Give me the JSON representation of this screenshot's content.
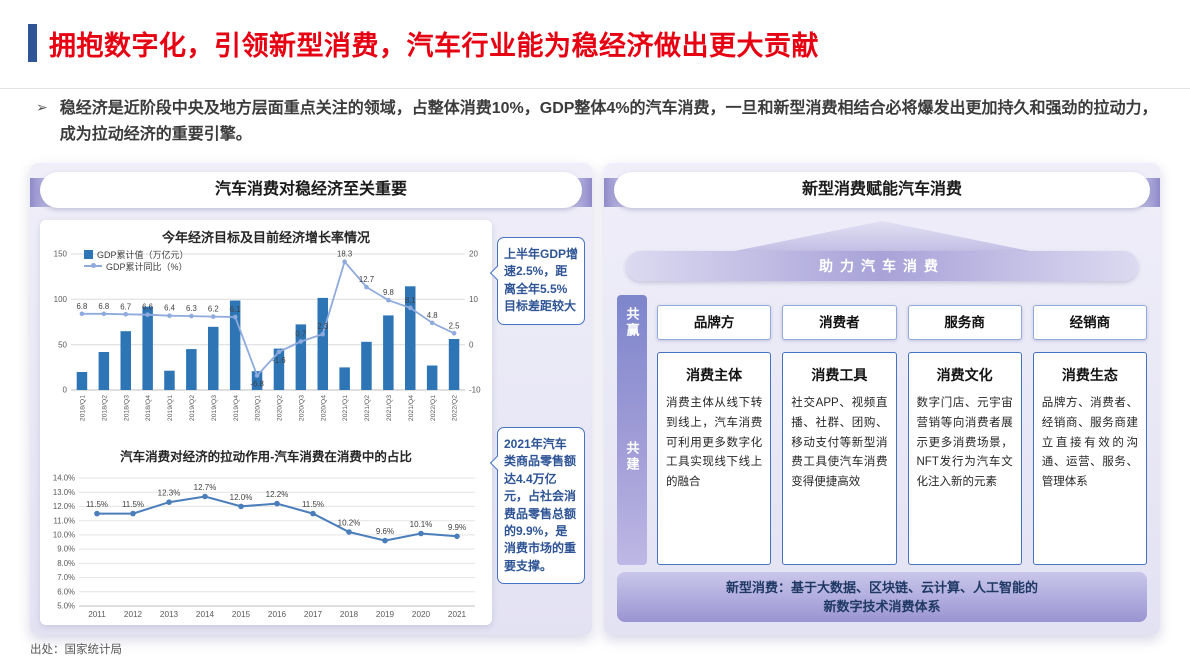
{
  "header": {
    "title": "拥抱数字化，引领新型消费，汽车行业能为稳经济做出更大贡献",
    "bullet_marker": "➢",
    "bullet": "稳经济是近阶段中央及地方层面重点关注的领域，占整体消费10%，GDP整体4%的汽车消费，一旦和新型消费相结合必将爆发出更加持久和强劲的拉动力，成为拉动经济的重要引擎。"
  },
  "left_panel": {
    "title": "汽车消费对稳经济至关重要",
    "callout_gdp": "上半年GDP增速2.5%，距离全年5.5%目标差距较大",
    "callout_auto": "2021年汽车类商品零售额达4.4万亿元，占社会消费品零售总额的9.9%，是消费市场的重要支撑。"
  },
  "right_panel": {
    "title": "新型消费赋能汽车消费",
    "banner": "助力汽车消费",
    "rail": {
      "win": "共赢",
      "build": "共建"
    },
    "roles": [
      {
        "label": "品牌方"
      },
      {
        "label": "消费者"
      },
      {
        "label": "服务商"
      },
      {
        "label": "经销商"
      }
    ],
    "cards": [
      {
        "title": "消费主体",
        "body": "消费主体从线下转到线上，汽车消费可利用更多数字化工具实现线下线上的融合"
      },
      {
        "title": "消费工具",
        "body": "社交APP、视频直播、社群、团购、移动支付等新型消费工具使汽车消费变得便捷高效"
      },
      {
        "title": "消费文化",
        "body": "数字门店、元宇宙营销等向消费者展示更多消费场景，NFT发行为汽车文化注入新的元素"
      },
      {
        "title": "消费生态",
        "body": "品牌方、消费者、经销商、服务商建立直接有效的沟通、运营、服务、管理体系"
      }
    ],
    "footer": "新型消费：基于大数据、区块链、云计算、人工智能的\n新数字技术消费体系"
  },
  "footer": {
    "source": "出处：国家统计局"
  },
  "colors": {
    "title_red": "#e60012",
    "accent_blue": "#2f5597",
    "bar_blue": "#2e75b6",
    "line_light": "#8faadc",
    "line_mid": "#4a7ebb",
    "callout_border": "#4472c4",
    "callout_text": "#2e5496",
    "panel_purple": "#b9b4e0"
  },
  "chart_data": [
    {
      "type": "bar",
      "subtype": "bar+line combo",
      "title": "今年经济目标及目前经济增长率情况",
      "categories": [
        "2018/Q1",
        "2018/Q2",
        "2018/Q3",
        "2018/Q4",
        "2019/Q1",
        "2019/Q2",
        "2019/Q3",
        "2019/Q4",
        "2020/Q1",
        "2020/Q2",
        "2020/Q3",
        "2020/Q4",
        "2021/Q1",
        "2021/Q2",
        "2021/Q3",
        "2021/Q4",
        "2022/Q1",
        "2022/Q2"
      ],
      "series": [
        {
          "name": "GDP累计值（万亿元）",
          "type": "bar",
          "axis": "left",
          "values": [
            19.9,
            41.9,
            64.9,
            91.9,
            21.3,
            45.1,
            69.7,
            98.7,
            20.7,
            45.7,
            72.3,
            101.6,
            24.9,
            53.2,
            82.3,
            114.4,
            27.0,
            56.3
          ]
        },
        {
          "name": "GDP累计同比（%）",
          "type": "line",
          "axis": "right",
          "values": [
            6.8,
            6.8,
            6.7,
            6.6,
            6.4,
            6.3,
            6.2,
            6.1,
            -6.8,
            -1.6,
            0.7,
            2.3,
            18.3,
            12.7,
            9.8,
            8.1,
            4.8,
            2.5
          ]
        }
      ],
      "left_axis": {
        "min": 0,
        "max": 150,
        "ticks": [
          0,
          50,
          100,
          150
        ]
      },
      "right_axis": {
        "min": -10,
        "max": 20,
        "ticks": [
          -10,
          0,
          10,
          20
        ]
      },
      "legend_position": "top-left",
      "grid": true
    },
    {
      "type": "line",
      "title": "汽车消费对经济的拉动作用-汽车消费在消费中的占比",
      "categories": [
        "2011",
        "2012",
        "2013",
        "2014",
        "2015",
        "2016",
        "2017",
        "2018",
        "2019",
        "2020",
        "2021"
      ],
      "values": [
        11.5,
        11.5,
        12.3,
        12.7,
        12.0,
        12.2,
        11.5,
        10.2,
        9.6,
        10.1,
        9.9
      ],
      "unit": "%",
      "ylim": [
        5,
        14
      ],
      "y_tick_step": 1,
      "grid": true,
      "data_labels": true
    }
  ]
}
